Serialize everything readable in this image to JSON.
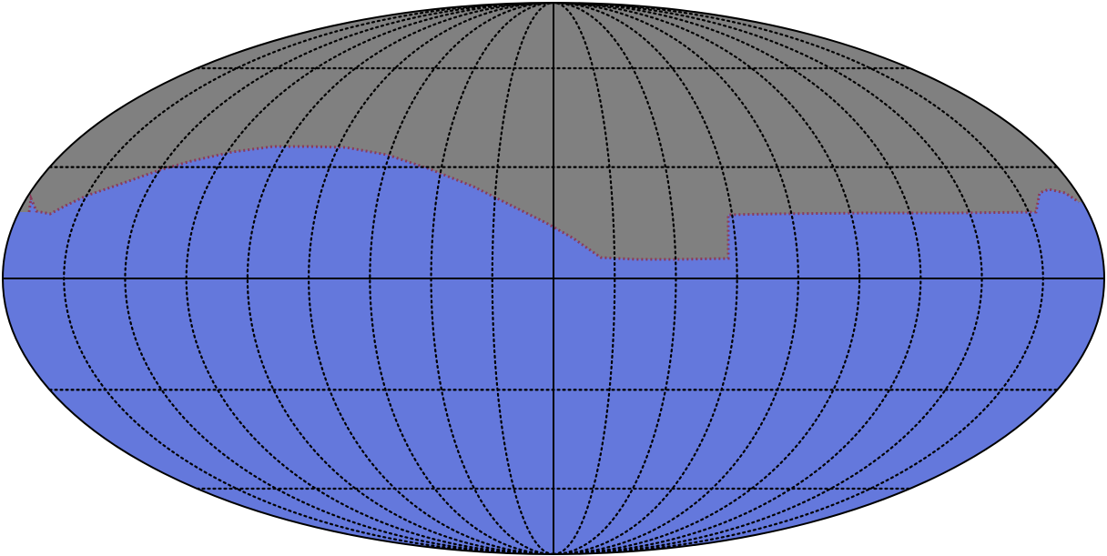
{
  "map": {
    "projection": "mollweide",
    "colors": {
      "background": "#ffffff",
      "masked_region": "#808080",
      "covered_region": "#6478dc",
      "boundary_marks": "#8b3a5a",
      "outline": "#000000",
      "graticule": "#000000"
    },
    "graticule": {
      "meridian_spacing_deg": 20,
      "parallel_spacing_deg": 30,
      "style": "dotted",
      "central_meridian_style": "solid",
      "equator_style": "solid"
    },
    "coverage_boundary_legend": "none"
  }
}
